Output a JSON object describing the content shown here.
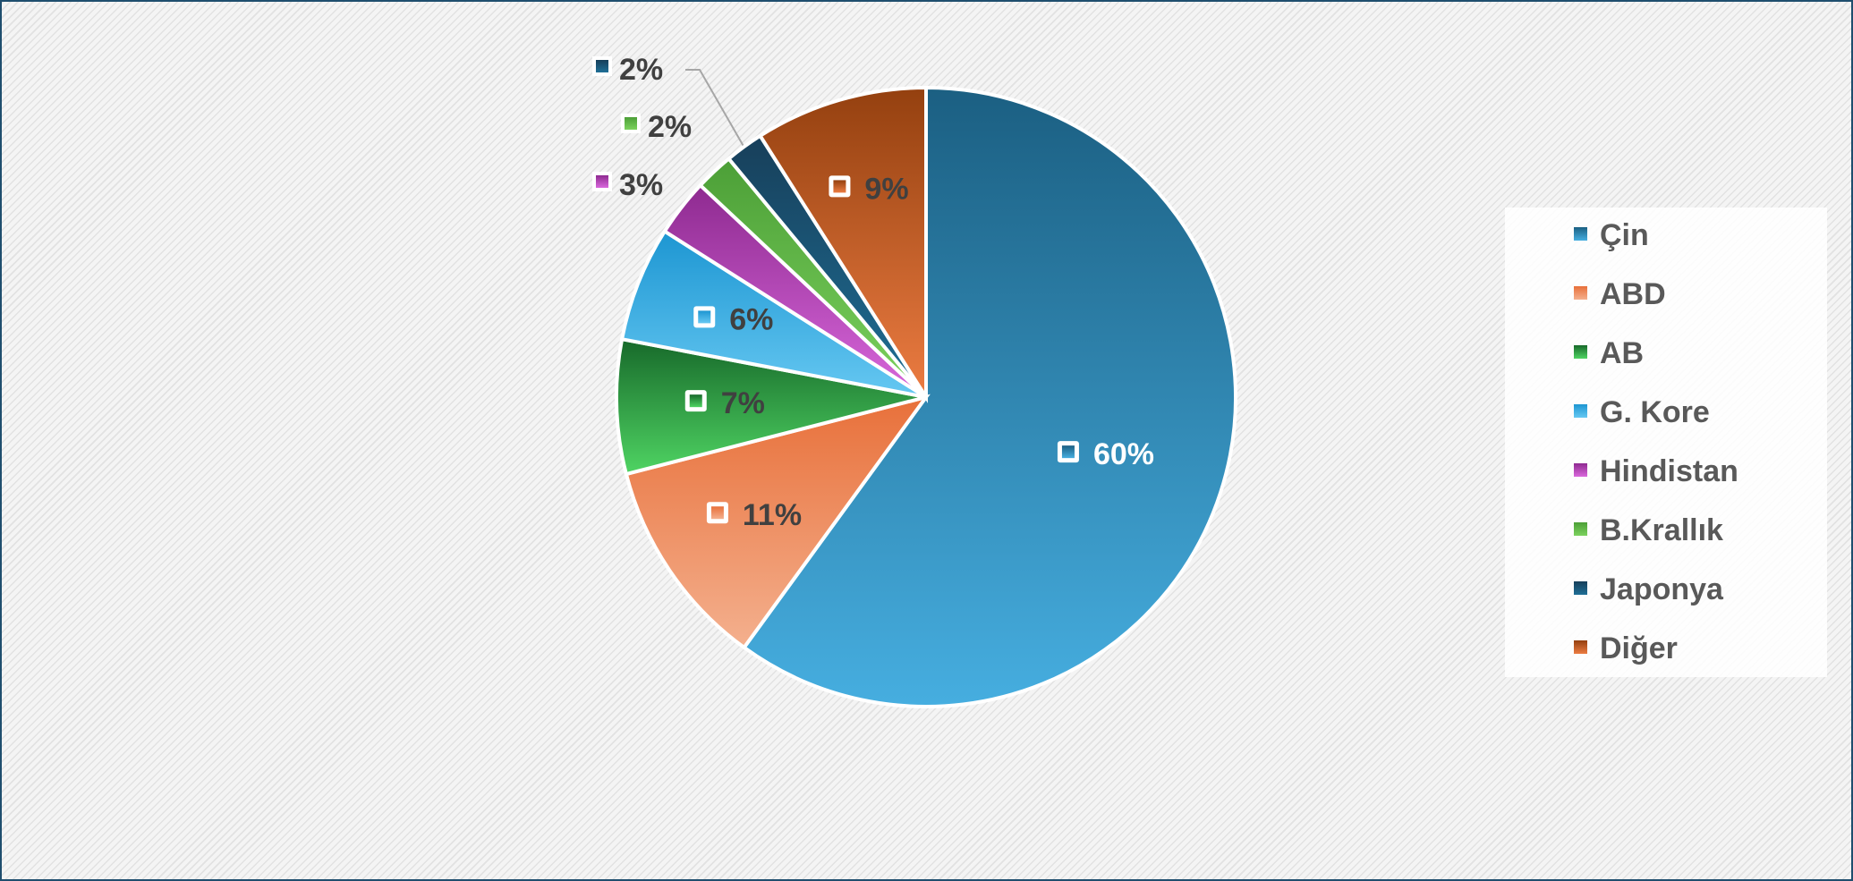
{
  "chart_data": {
    "type": "pie",
    "title": "",
    "categories": [
      "Çin",
      "ABD",
      "AB",
      "G. Kore",
      "Hindistan",
      "B.Krallık",
      "Japonya",
      "Diğer"
    ],
    "values": [
      60,
      11,
      7,
      6,
      3,
      2,
      2,
      9
    ],
    "data_labels": [
      "60%",
      "11%",
      "7%",
      "6%",
      "3%",
      "2%",
      "2%",
      "9%"
    ],
    "colors": [
      [
        "#1b5f82",
        "#46aee0"
      ],
      [
        "#e8703a",
        "#f4b08e"
      ],
      [
        "#17692a",
        "#4fd463"
      ],
      [
        "#1d96d2",
        "#66c8f2"
      ],
      [
        "#8e2a90",
        "#d968dc"
      ],
      [
        "#4c9f37",
        "#7cd25e"
      ],
      [
        "#173f5a",
        "#1f6f96"
      ],
      [
        "#94400f",
        "#ec7c42"
      ]
    ],
    "legend": {
      "position": "right",
      "items": [
        "Çin",
        "ABD",
        "AB",
        "G. Kore",
        "Hindistan",
        "B.Krallık",
        "Japonya",
        "Diğer"
      ]
    }
  }
}
